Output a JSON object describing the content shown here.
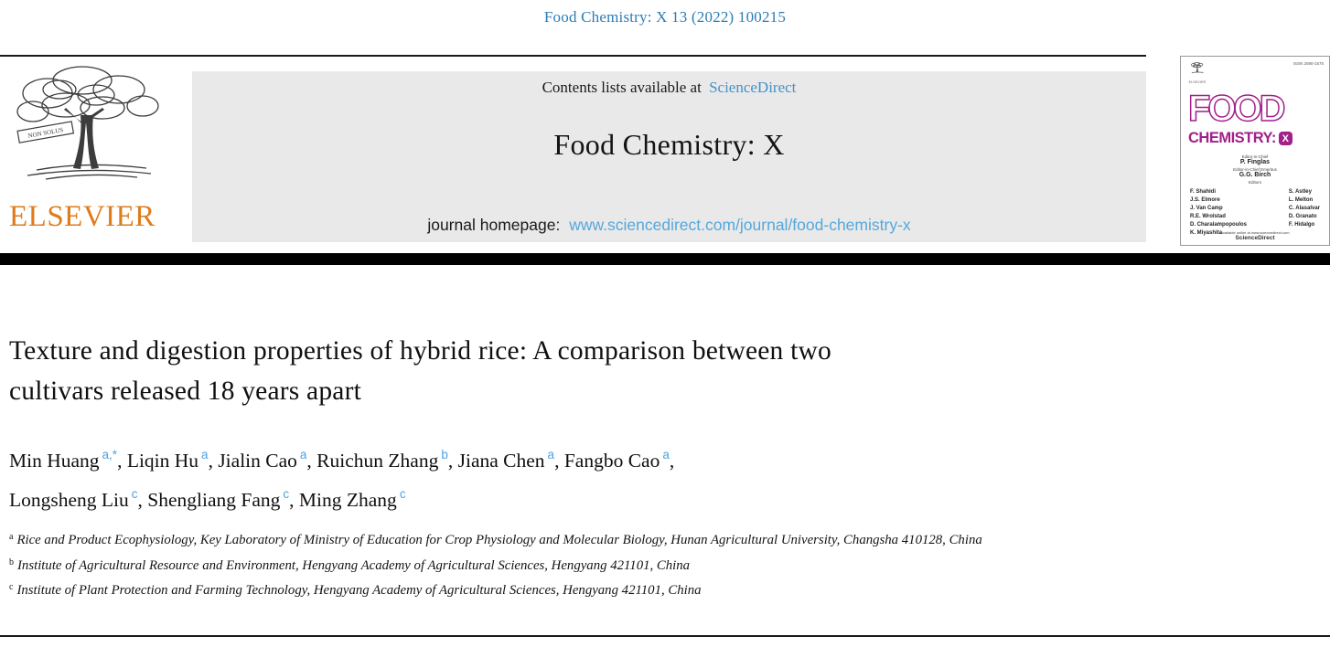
{
  "citation": "Food Chemistry: X 13 (2022) 100215",
  "colors": {
    "citation_teal": "#2b7db5",
    "sciencedirect_link_blue": "#4292c8",
    "homepage_link_blue": "#55a7dc",
    "superscript_blue": "#4da3e2",
    "elsevier_orange": "#de7c1c",
    "cover_magenta": "#a2208a",
    "banner_gray": "#e9e9e9"
  },
  "banner": {
    "contents_prefix": "Contents lists available at",
    "sciencedirect_link": "ScienceDirect",
    "journal_title": "Food Chemistry: X",
    "homepage_prefix": "journal homepage:",
    "homepage_url": "www.sciencedirect.com/journal/food-chemistry-x"
  },
  "elsevier_logo": {
    "wordmark": "ELSEVIER",
    "ribbon_motto": "NON SOLUS"
  },
  "cover": {
    "issn": "ISSN 2590-1575",
    "publisher_mark": "ELSEVIER",
    "title_word": "FOOD",
    "title_word2": "CHEMISTRY:",
    "title_x": "X",
    "eic_label": "Editor-in-Chief",
    "eic_name": "P. Finglas",
    "emeritus_label": "Editor-in-Chief Emeritus",
    "emeritus_name": "G.G. Birch",
    "editors_label": "Editors",
    "editors_left": [
      "F. Shahidi",
      "J.S. Elmore",
      "J. Van Camp",
      "R.E. Wrolstad",
      "D. Charalampopoulos",
      "K. Miyashita"
    ],
    "editors_right": [
      "S. Astley",
      "L. Melton",
      "C. Alasalvar",
      "D. Granato",
      "F. Hidalgo"
    ],
    "available_line": "Available online at www.sciencedirect.com",
    "sciencedirect_label": "ScienceDirect"
  },
  "article": {
    "title_lines": [
      "Texture and digestion properties of hybrid rice: A comparison between two",
      "cultivars released 18 years apart"
    ],
    "author_lines": [
      [
        {
          "name": "Min Huang",
          "sup": "a,*"
        },
        {
          "name": "Liqin Hu",
          "sup": "a"
        },
        {
          "name": "Jialin Cao",
          "sup": "a"
        },
        {
          "name": "Ruichun Zhang",
          "sup": "b"
        },
        {
          "name": "Jiana Chen",
          "sup": "a"
        },
        {
          "name": "Fangbo Cao",
          "sup": "a"
        }
      ],
      [
        {
          "name": "Longsheng Liu",
          "sup": "c"
        },
        {
          "name": "Shengliang Fang",
          "sup": "c"
        },
        {
          "name": "Ming Zhang",
          "sup": "c"
        }
      ]
    ],
    "affiliations": [
      {
        "sup": "a",
        "text": "Rice and Product Ecophysiology, Key Laboratory of Ministry of Education for Crop Physiology and Molecular Biology, Hunan Agricultural University, Changsha 410128, China"
      },
      {
        "sup": "b",
        "text": "Institute of Agricultural Resource and Environment, Hengyang Academy of Agricultural Sciences, Hengyang 421101, China"
      },
      {
        "sup": "c",
        "text": "Institute of Plant Protection and Farming Technology, Hengyang Academy of Agricultural Sciences, Hengyang 421101, China"
      }
    ]
  }
}
